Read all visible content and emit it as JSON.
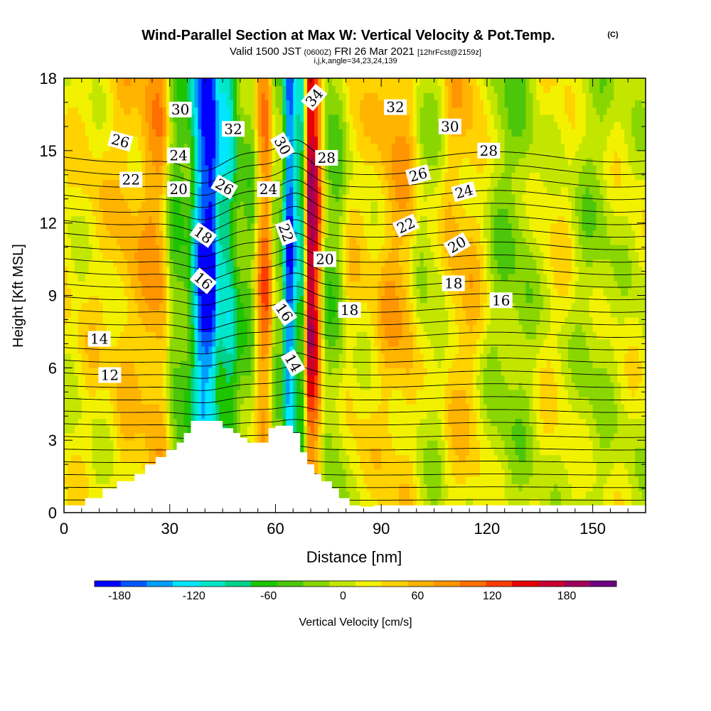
{
  "colors": {
    "background": "#ffffff",
    "terrain": "#ffffff",
    "contour": "#000000",
    "frame": "#000000",
    "palette": [
      "#0000ff",
      "#0055ff",
      "#00a0ff",
      "#00e6ff",
      "#00e6c8",
      "#00d28c",
      "#1ec400",
      "#4cc60a",
      "#8ad600",
      "#c3e600",
      "#f2f200",
      "#ffd200",
      "#ffb400",
      "#ff9600",
      "#ff6e00",
      "#ff3c00",
      "#e60000",
      "#c80032",
      "#a0005a",
      "#6e0082"
    ]
  },
  "header": {
    "title": "Wind-Parallel Section at Max W: Vertical Velocity & Pot.Temp.",
    "title_mark": "(C)",
    "valid_prefix": "Valid 1500 JST ",
    "valid_small": "(0600Z)",
    "valid_mid": " FRI 26 Mar 2021 ",
    "valid_suffix": "[12hrFcst@2159z]",
    "params": "i,j,k,angle=34,23,24,139"
  },
  "chart_data": {
    "type": "heatmap",
    "title": "Wind-Parallel Section at Max W: Vertical Velocity & Pot.Temp.",
    "xlabel": "Distance [nm]",
    "ylabel": "Height [Kft MSL]",
    "xlim": [
      0,
      165
    ],
    "ylim": [
      0,
      18
    ],
    "xticks": [
      "0",
      "30",
      "60",
      "90",
      "120",
      "150"
    ],
    "yticks": [
      "0",
      "3",
      "6",
      "9",
      "12",
      "15",
      "18"
    ],
    "colorbar": {
      "label": "Vertical Velocity [cm/s]",
      "min": -200,
      "max": 220,
      "step": 20,
      "tick_labels": [
        "-180",
        "-120",
        "-60",
        "0",
        "60",
        "120",
        "180"
      ]
    },
    "vertical_velocity_bands": [
      {
        "x": 0,
        "w": 10,
        "xw": 0.1
      },
      {
        "x": 10,
        "w": 20,
        "xw": 0.08
      },
      {
        "x": 19,
        "w": 40,
        "xw": 0.15
      },
      {
        "x": 26,
        "w": 60,
        "xw": 0.08
      },
      {
        "x": 33,
        "w": -50,
        "xw": 0.1
      },
      {
        "x": 41,
        "w": -190,
        "xw": 0.05
      },
      {
        "x": 45,
        "w": -110,
        "xw": 0.08
      },
      {
        "x": 52,
        "w": -40,
        "xw": 0.1
      },
      {
        "x": 57,
        "w": 80,
        "xw": 0.05
      },
      {
        "x": 61,
        "w": -30,
        "xw": 0.1
      },
      {
        "x": 64,
        "w": -170,
        "xw": 0.05
      },
      {
        "x": 67,
        "w": -90,
        "xw": 0.05
      },
      {
        "x": 70,
        "w": 160,
        "xw": 0.05
      },
      {
        "x": 76,
        "w": -40,
        "xw": 0.1
      },
      {
        "x": 83,
        "w": 20,
        "xw": 0.1
      },
      {
        "x": 95,
        "w": 50,
        "xw": 0.15
      },
      {
        "x": 104,
        "w": -10,
        "xw": 0.1
      },
      {
        "x": 112,
        "w": 40,
        "xw": 0.1
      },
      {
        "x": 127,
        "w": -30,
        "xw": 0.1
      },
      {
        "x": 140,
        "w": 10,
        "xw": 0.1
      },
      {
        "x": 150,
        "w": -20,
        "xw": 0.1
      },
      {
        "x": 160,
        "w": 0,
        "xw": 0.1
      }
    ],
    "terrain_profile": {
      "x": [
        0,
        6,
        6,
        11,
        11,
        15,
        15,
        20,
        20,
        23,
        23,
        26,
        26,
        29,
        29,
        32,
        32,
        34,
        34,
        36,
        36,
        45,
        45,
        48,
        48,
        50,
        50,
        52,
        52,
        58,
        58,
        60,
        60,
        65,
        65,
        67,
        67,
        69,
        69,
        71,
        71,
        73,
        73,
        76,
        76,
        78,
        78,
        81,
        81,
        84,
        84,
        88,
        88,
        165
      ],
      "y": [
        0.3,
        0.3,
        0.6,
        0.6,
        1.0,
        1.0,
        1.3,
        1.3,
        1.6,
        1.6,
        2.0,
        2.0,
        2.3,
        2.3,
        2.6,
        2.6,
        2.9,
        2.9,
        3.3,
        3.3,
        3.8,
        3.8,
        3.5,
        3.5,
        3.3,
        3.3,
        3.1,
        3.1,
        2.9,
        2.9,
        3.5,
        3.5,
        3.6,
        3.6,
        3.3,
        3.3,
        2.5,
        2.5,
        2.0,
        2.0,
        1.6,
        1.6,
        1.3,
        1.3,
        1.0,
        1.0,
        0.6,
        0.6,
        0.3,
        0.3,
        0.2,
        0.2,
        0.3,
        0.3
      ]
    },
    "theta_contours_C": [
      8,
      9,
      10,
      11,
      12,
      13,
      14,
      15,
      16,
      17,
      18,
      19,
      20,
      21,
      22,
      23,
      24,
      25,
      26,
      27,
      28,
      29,
      30,
      31,
      32,
      33,
      34,
      35
    ],
    "contour_labels": [
      {
        "text": "30",
        "x": 33,
        "y": 16.7,
        "rot": 0
      },
      {
        "text": "26",
        "x": 16,
        "y": 15.4,
        "rot": 15
      },
      {
        "text": "24",
        "x": 32.5,
        "y": 14.8,
        "rot": 0
      },
      {
        "text": "22",
        "x": 19,
        "y": 13.8,
        "rot": 0
      },
      {
        "text": "20",
        "x": 32.5,
        "y": 13.4,
        "rot": 0
      },
      {
        "text": "26",
        "x": 45.5,
        "y": 13.5,
        "rot": 30
      },
      {
        "text": "24",
        "x": 58,
        "y": 13.4,
        "rot": 0
      },
      {
        "text": "32",
        "x": 48,
        "y": 15.9,
        "rot": 0
      },
      {
        "text": "34",
        "x": 71,
        "y": 17.2,
        "rot": -50
      },
      {
        "text": "30",
        "x": 62,
        "y": 15.2,
        "rot": 60
      },
      {
        "text": "28",
        "x": 74.5,
        "y": 14.7,
        "rot": 0
      },
      {
        "text": "18",
        "x": 39.5,
        "y": 11.5,
        "rot": 35
      },
      {
        "text": "22",
        "x": 63,
        "y": 11.6,
        "rot": 70
      },
      {
        "text": "20",
        "x": 74,
        "y": 10.5,
        "rot": 0
      },
      {
        "text": "16",
        "x": 39.5,
        "y": 9.6,
        "rot": 40
      },
      {
        "text": "16",
        "x": 62.5,
        "y": 8.3,
        "rot": 55
      },
      {
        "text": "18",
        "x": 81,
        "y": 8.4,
        "rot": 0
      },
      {
        "text": "14",
        "x": 65,
        "y": 6.2,
        "rot": 60
      },
      {
        "text": "14",
        "x": 10,
        "y": 7.2,
        "rot": 0
      },
      {
        "text": "12",
        "x": 13,
        "y": 5.7,
        "rot": 0
      },
      {
        "text": "32",
        "x": 94,
        "y": 16.8,
        "rot": 0
      },
      {
        "text": "30",
        "x": 109.5,
        "y": 16.0,
        "rot": 0
      },
      {
        "text": "28",
        "x": 120.5,
        "y": 15.0,
        "rot": 0
      },
      {
        "text": "26",
        "x": 100.5,
        "y": 14.0,
        "rot": -15
      },
      {
        "text": "24",
        "x": 113.5,
        "y": 13.3,
        "rot": -15
      },
      {
        "text": "22",
        "x": 97,
        "y": 11.9,
        "rot": -25
      },
      {
        "text": "20",
        "x": 111.5,
        "y": 11.1,
        "rot": -30
      },
      {
        "text": "18",
        "x": 110.5,
        "y": 9.5,
        "rot": 0
      },
      {
        "text": "16",
        "x": 124,
        "y": 8.8,
        "rot": 0
      }
    ]
  }
}
